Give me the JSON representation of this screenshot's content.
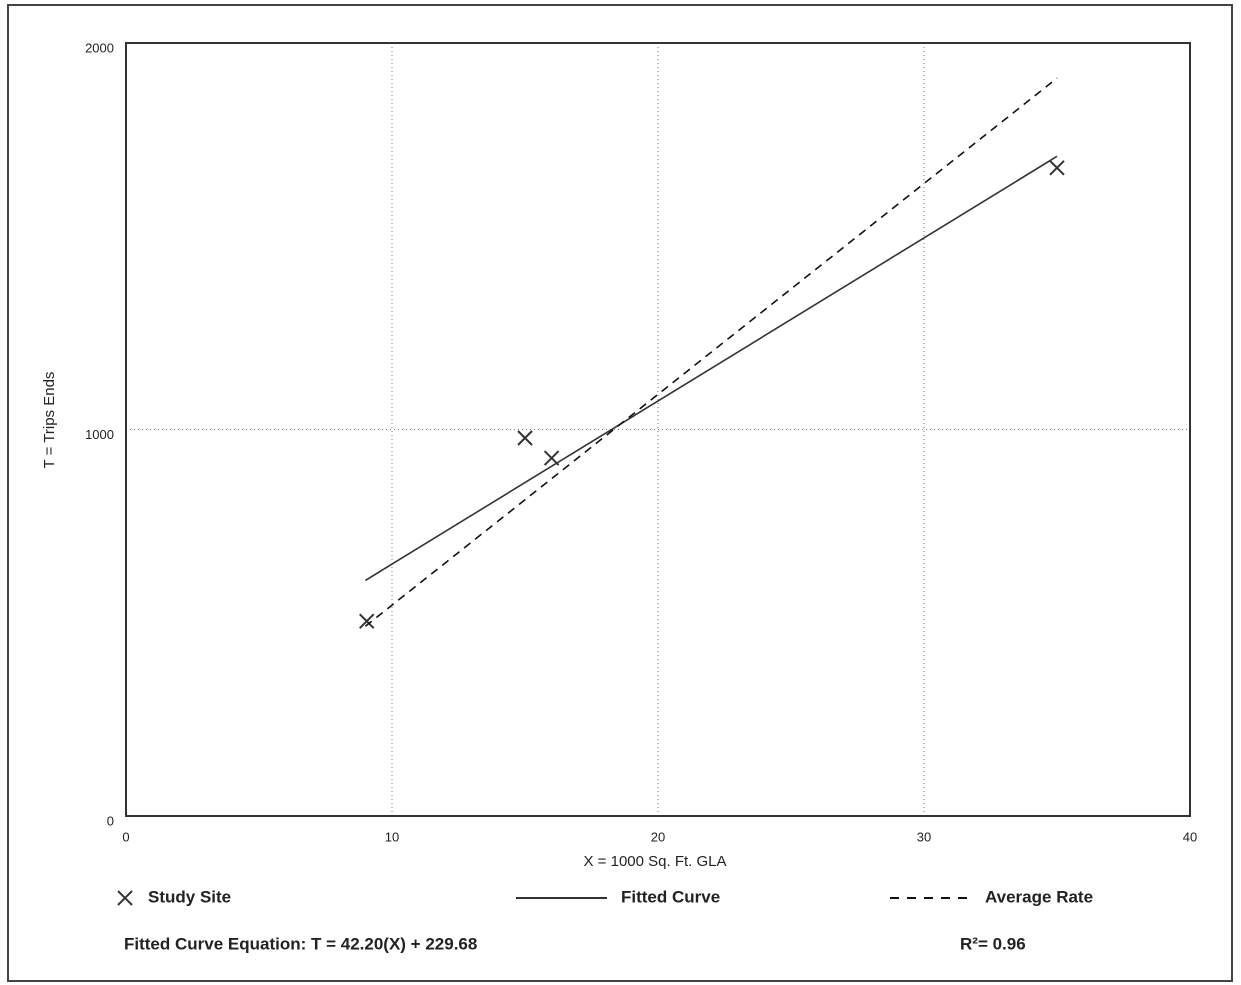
{
  "chart_data": {
    "type": "scatter",
    "xlabel": "X = 1000 Sq. Ft. GLA",
    "ylabel": "T = Trips Ends",
    "xlim": [
      0,
      40
    ],
    "xticks": [
      0,
      10,
      20,
      30,
      40
    ],
    "ylim": [
      0,
      2000
    ],
    "yticks": [
      0,
      1000,
      2000
    ],
    "grid": true,
    "series": [
      {
        "name": "Study Site",
        "mark": "x",
        "color": "#333333",
        "x": [
          9.05,
          15.0,
          16.0,
          35.0
        ],
        "values": [
          504,
          978,
          926,
          1677
        ]
      },
      {
        "name": "Fitted Curve",
        "mark": "line",
        "dash": false,
        "color": "#333333",
        "x": [
          9,
          35
        ],
        "values": [
          609.5,
          1706.7
        ]
      },
      {
        "name": "Average Rate",
        "mark": "line",
        "dash": true,
        "color": "#111111",
        "x": [
          9,
          35
        ],
        "values": [
          491,
          1909
        ]
      }
    ],
    "equation": "Fitted Curve Equation: T = 42.20(X) + 229.68",
    "r_squared": "R²= 0.96"
  }
}
